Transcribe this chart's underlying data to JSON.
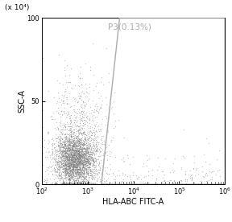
{
  "title": "P3(0.13%)",
  "xlabel": "HLA-ABC FITC-A",
  "ylabel": "SSC-A",
  "ylabel_multiplier": "(x 10⁴)",
  "xlim_log": [
    2,
    6
  ],
  "ylim": [
    0,
    100
  ],
  "yticks": [
    0,
    50,
    100
  ],
  "bg_color": "#ffffff",
  "scatter_color": "#808080",
  "scatter_alpha": 0.5,
  "scatter_size": 0.8,
  "n_points": 4000,
  "gate_x_coords": [
    2000,
    5000,
    1000000,
    1000000,
    2000
  ],
  "gate_y_coords": [
    0,
    100,
    100,
    0,
    0
  ],
  "gate_color": "#aaaaaa",
  "gate_linewidth": 1.0,
  "title_color": "#aaaaaa",
  "title_fontsize": 7.5,
  "axis_fontsize": 7,
  "tick_fontsize": 6
}
